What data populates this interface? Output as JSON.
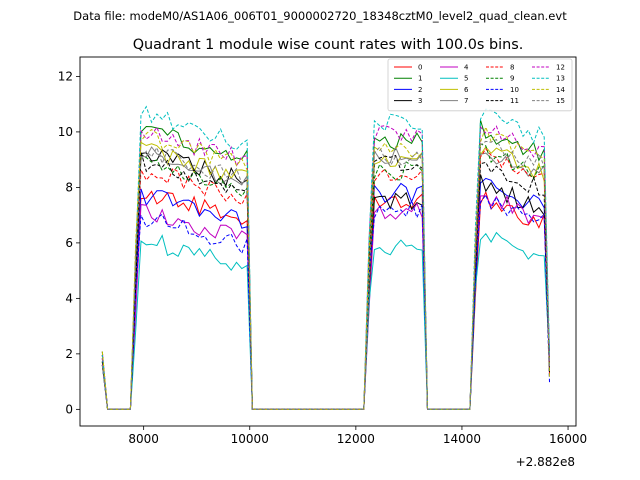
{
  "chart_data": {
    "type": "line",
    "suptitle": "Data file: modeM0/AS1A06_006T01_9000002720_18348cztM0_level2_quad_clean.evt",
    "title": "Quadrant 1 module wise count rates with 100.0s bins.",
    "xlabel": "",
    "ylabel": "",
    "x_offset_label": "+2.882e8",
    "xlim": [
      6800,
      16150
    ],
    "ylim": [
      -0.6,
      12.7
    ],
    "xticks": [
      8000,
      10000,
      12000,
      14000,
      16000
    ],
    "xtick_labels": [
      "8000",
      "10000",
      "12000",
      "14000",
      "16000"
    ],
    "yticks": [
      0,
      2,
      4,
      6,
      8,
      10,
      12
    ],
    "ytick_labels": [
      "0",
      "2",
      "4",
      "6",
      "8",
      "10",
      "12"
    ],
    "legend_position": "top-right",
    "legend_columns": 4,
    "segments": [
      {
        "start": 7850,
        "end": 9950,
        "n": 22
      },
      {
        "start": 12250,
        "end": 13250,
        "n": 11
      },
      {
        "start": 14250,
        "end": 15550,
        "n": 14
      }
    ],
    "series": [
      {
        "name": "0",
        "color": "#ff0000",
        "dash": false,
        "levels": [
          7.3,
          7.5,
          7.2
        ]
      },
      {
        "name": "1",
        "color": "#008000",
        "dash": false,
        "levels": [
          9.5,
          9.7,
          9.7
        ]
      },
      {
        "name": "2",
        "color": "#0000ff",
        "dash": false,
        "levels": [
          7.2,
          7.8,
          7.8
        ]
      },
      {
        "name": "3",
        "color": "#000000",
        "dash": false,
        "levels": [
          8.7,
          7.5,
          7.7
        ]
      },
      {
        "name": "4",
        "color": "#c000c0",
        "dash": false,
        "levels": [
          6.6,
          7.2,
          7.3
        ]
      },
      {
        "name": "5",
        "color": "#00bfbf",
        "dash": false,
        "levels": [
          5.6,
          5.9,
          6.0
        ]
      },
      {
        "name": "6",
        "color": "#bfbf00",
        "dash": false,
        "levels": [
          8.8,
          9.0,
          9.0
        ]
      },
      {
        "name": "7",
        "color": "#808080",
        "dash": false,
        "levels": [
          8.7,
          9.2,
          9.0
        ]
      },
      {
        "name": "8",
        "color": "#ff0000",
        "dash": true,
        "levels": [
          8.1,
          8.4,
          8.8
        ]
      },
      {
        "name": "9",
        "color": "#008000",
        "dash": true,
        "levels": [
          8.3,
          8.6,
          8.9
        ]
      },
      {
        "name": "10",
        "color": "#0000ff",
        "dash": true,
        "levels": [
          6.4,
          7.2,
          7.2
        ]
      },
      {
        "name": "11",
        "color": "#000000",
        "dash": true,
        "levels": [
          8.4,
          8.9,
          8.4
        ]
      },
      {
        "name": "12",
        "color": "#c000c0",
        "dash": true,
        "levels": [
          9.5,
          9.9,
          9.7
        ]
      },
      {
        "name": "13",
        "color": "#00bfbf",
        "dash": true,
        "levels": [
          10.1,
          10.3,
          10.3
        ]
      },
      {
        "name": "14",
        "color": "#bfbf00",
        "dash": true,
        "levels": [
          9.3,
          9.3,
          9.5
        ]
      },
      {
        "name": "15",
        "color": "#808080",
        "dash": true,
        "levels": [
          8.8,
          9.1,
          9.3
        ]
      }
    ]
  }
}
